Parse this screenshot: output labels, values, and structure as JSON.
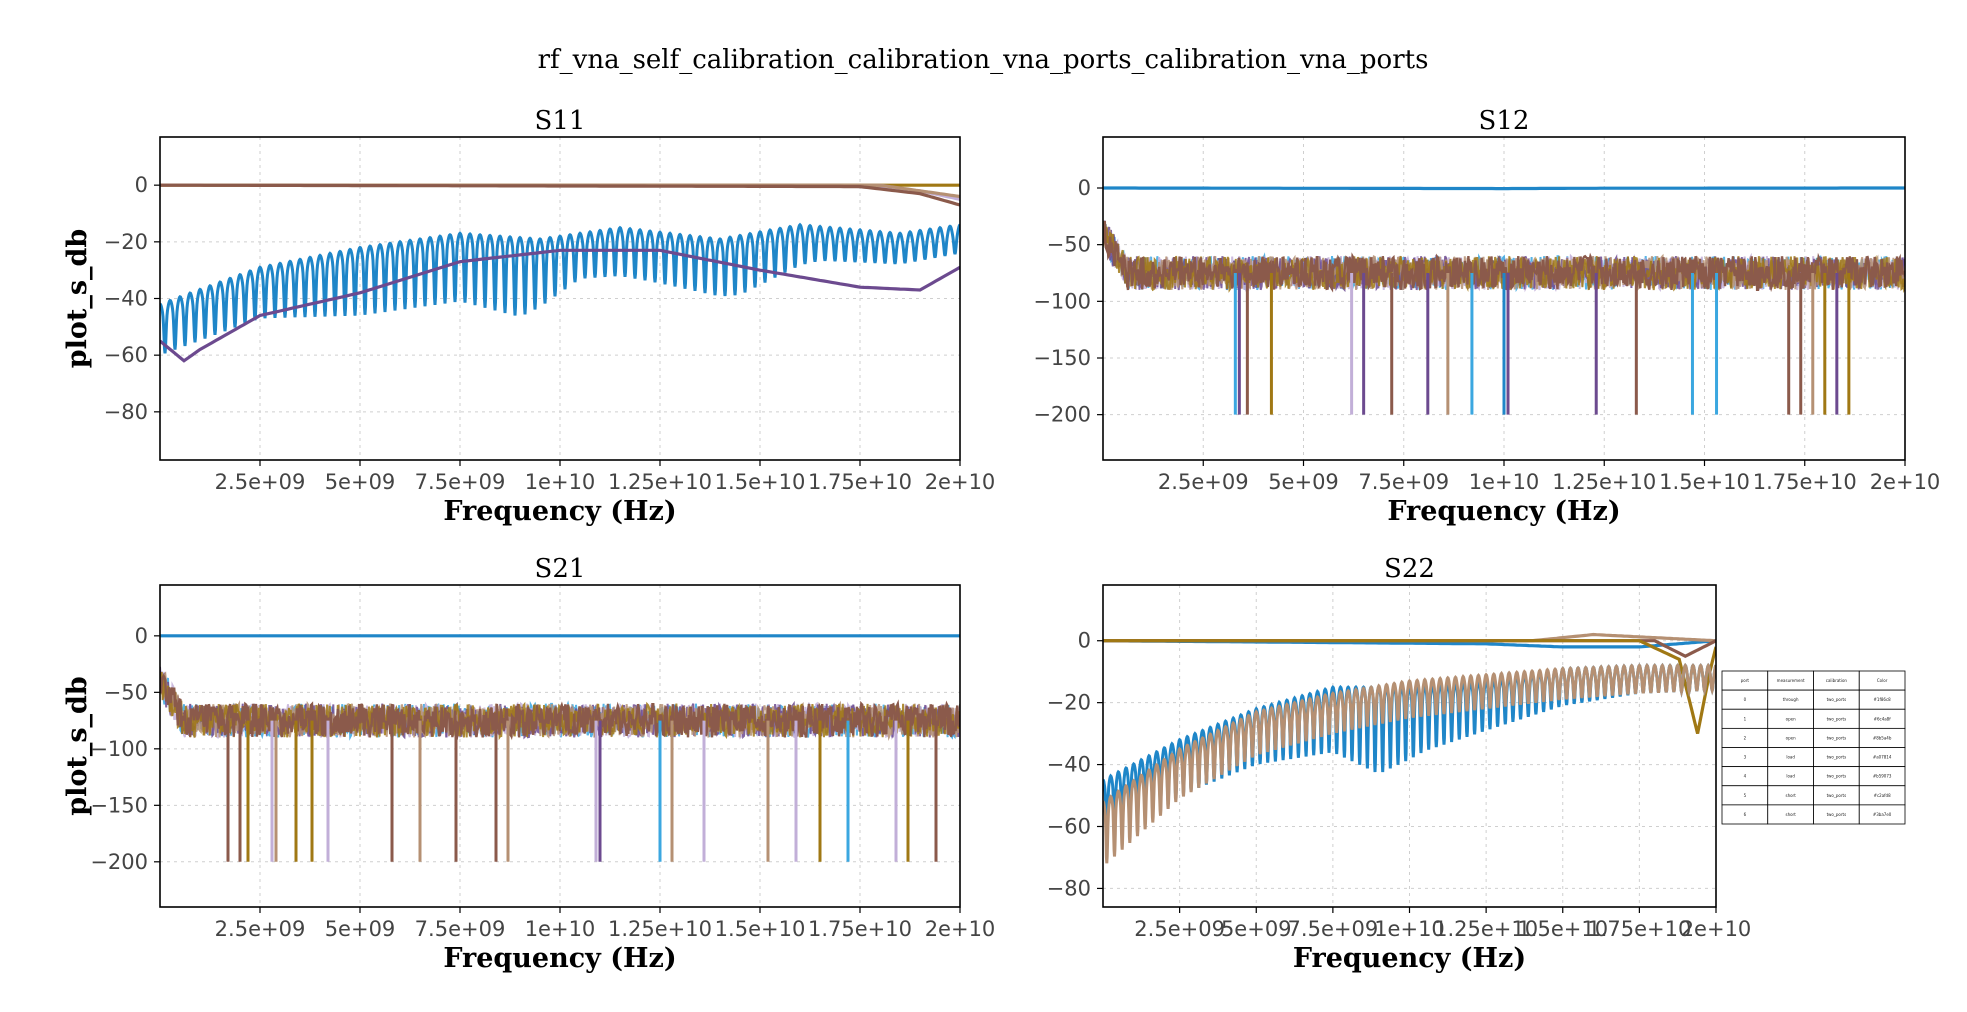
{
  "figure": {
    "suptitle": "rf_vna_self_calibration_calibration_vna_ports_calibration_vna_ports"
  },
  "palette": [
    "#1f86c8",
    "#6c4a8f",
    "#8b5a4b",
    "#a07814",
    "#b59073",
    "#c2afd8",
    "#3ba7e0"
  ],
  "chart_data": [
    {
      "type": "line",
      "title": "S11",
      "xlabel": "Frequency (Hz)",
      "ylabel": "plot_s_db",
      "xlim": [
        0,
        20000000000
      ],
      "ylim": [
        -97,
        17
      ],
      "x_ticks": [
        2500000000,
        5000000000,
        7500000000,
        10000000000,
        12500000000,
        15000000000,
        17500000000,
        20000000000
      ],
      "x_tick_labels": [
        "2.5e+09",
        "5e+09",
        "7.5e+09",
        "1e+10",
        "1.25e+10",
        "1.5e+10",
        "1.75e+10",
        "2e+10"
      ],
      "y_ticks": [
        0,
        -20,
        -40,
        -60,
        -80
      ],
      "y_tick_labels": [
        "0",
        "−20",
        "−40",
        "−60",
        "−80"
      ],
      "grid": true,
      "series": [
        {
          "color": "#c2afd8",
          "style": "flat",
          "points": [
            [
              0,
              0
            ],
            [
              17000000000,
              0
            ],
            [
              19000000000,
              -2
            ],
            [
              20000000000,
              -5
            ]
          ]
        },
        {
          "color": "#a07814",
          "style": "flat",
          "points": [
            [
              0,
              0
            ],
            [
              20000000000,
              0
            ]
          ]
        },
        {
          "color": "#b59073",
          "style": "flat",
          "points": [
            [
              0,
              0
            ],
            [
              18000000000,
              0
            ],
            [
              19500000000,
              -3
            ],
            [
              20000000000,
              -4
            ]
          ]
        },
        {
          "color": "#8b5a4b",
          "style": "flat",
          "points": [
            [
              0,
              0
            ],
            [
              17500000000,
              -0.5
            ],
            [
              19000000000,
              -3
            ],
            [
              20000000000,
              -7
            ]
          ]
        },
        {
          "color": "#1f86c8",
          "style": "ripple",
          "period": 250000000,
          "points": [
            [
              0,
              -45
            ],
            [
              2500000000,
              -32
            ],
            [
              5000000000,
              -25
            ],
            [
              7500000000,
              -20
            ],
            [
              9500000000,
              -22
            ],
            [
              11500000000,
              -18
            ],
            [
              14000000000,
              -22
            ],
            [
              16000000000,
              -17
            ],
            [
              18500000000,
              -20
            ],
            [
              20000000000,
              -17
            ]
          ],
          "depth": [
            [
              0,
              12
            ],
            [
              2500000000,
              12
            ],
            [
              5000000000,
              18
            ],
            [
              7500000000,
              18
            ],
            [
              9000000000,
              22
            ],
            [
              10500000000,
              10
            ],
            [
              12500000000,
              12
            ],
            [
              14500000000,
              15
            ],
            [
              16500000000,
              6
            ],
            [
              20000000000,
              4
            ]
          ]
        },
        {
          "color": "#6c4a8f",
          "style": "smooth",
          "points": [
            [
              0,
              -55
            ],
            [
              600000000,
              -62
            ],
            [
              1000000000,
              -58
            ],
            [
              2500000000,
              -46
            ],
            [
              5000000000,
              -38
            ],
            [
              7500000000,
              -27
            ],
            [
              10000000000,
              -23
            ],
            [
              12500000000,
              -23
            ],
            [
              15000000000,
              -30
            ],
            [
              17500000000,
              -36
            ],
            [
              19000000000,
              -37
            ],
            [
              20000000000,
              -29
            ]
          ]
        }
      ]
    },
    {
      "type": "line",
      "title": "S12",
      "xlabel": "Frequency (Hz)",
      "ylabel": "",
      "xlim": [
        0,
        20000000000
      ],
      "ylim": [
        -240,
        45
      ],
      "x_ticks": [
        2500000000,
        5000000000,
        7500000000,
        10000000000,
        12500000000,
        15000000000,
        17500000000,
        20000000000
      ],
      "x_tick_labels": [
        "2.5e+09",
        "5e+09",
        "7.5e+09",
        "1e+10",
        "1.25e+10",
        "1.5e+10",
        "1.75e+10",
        "2e+10"
      ],
      "y_ticks": [
        0,
        -50,
        -100,
        -150,
        -200
      ],
      "y_tick_labels": [
        "0",
        "−50",
        "−100",
        "−150",
        "−200"
      ],
      "grid": true,
      "noise_band": {
        "center": -75,
        "half_width": 15,
        "start": [
          0,
          -40
        ]
      },
      "spikes": [
        {
          "x": 3300000000,
          "color": "#3ba7e0"
        },
        {
          "x": 3400000000,
          "color": "#6c4a8f"
        },
        {
          "x": 3600000000,
          "color": "#8b5a4b"
        },
        {
          "x": 4200000000,
          "color": "#a07814"
        },
        {
          "x": 6200000000,
          "color": "#c2afd8"
        },
        {
          "x": 6500000000,
          "color": "#6c4a8f"
        },
        {
          "x": 7200000000,
          "color": "#8b5a4b"
        },
        {
          "x": 8100000000,
          "color": "#6c4a8f"
        },
        {
          "x": 8600000000,
          "color": "#b59073"
        },
        {
          "x": 9200000000,
          "color": "#3ba7e0"
        },
        {
          "x": 10000000000,
          "color": "#1f86c8"
        },
        {
          "x": 10100000000,
          "color": "#6c4a8f"
        },
        {
          "x": 12300000000,
          "color": "#6c4a8f"
        },
        {
          "x": 13300000000,
          "color": "#8b5a4b"
        },
        {
          "x": 14700000000,
          "color": "#3ba7e0"
        },
        {
          "x": 15300000000,
          "color": "#3ba7e0"
        },
        {
          "x": 17100000000,
          "color": "#8b5a4b"
        },
        {
          "x": 17400000000,
          "color": "#8b5a4b"
        },
        {
          "x": 17700000000,
          "color": "#b59073"
        },
        {
          "x": 18000000000,
          "color": "#a07814"
        },
        {
          "x": 18300000000,
          "color": "#6c4a8f"
        },
        {
          "x": 18600000000,
          "color": "#a07814"
        }
      ],
      "spike_bottom": -200,
      "series": [
        {
          "color": "#1f86c8",
          "style": "flat",
          "points": [
            [
              0,
              0
            ],
            [
              10000000000,
              -0.5
            ],
            [
              12500000000,
              -0.2
            ],
            [
              20000000000,
              0
            ]
          ]
        }
      ]
    },
    {
      "type": "line",
      "title": "S21",
      "xlabel": "Frequency (Hz)",
      "ylabel": "plot_s_db",
      "xlim": [
        0,
        20000000000
      ],
      "ylim": [
        -240,
        45
      ],
      "x_ticks": [
        2500000000,
        5000000000,
        7500000000,
        10000000000,
        12500000000,
        15000000000,
        17500000000,
        20000000000
      ],
      "x_tick_labels": [
        "2.5e+09",
        "5e+09",
        "7.5e+09",
        "1e+10",
        "1.25e+10",
        "1.5e+10",
        "1.75e+10",
        "2e+10"
      ],
      "y_ticks": [
        0,
        -50,
        -100,
        -150,
        -200
      ],
      "y_tick_labels": [
        "0",
        "−50",
        "−100",
        "−150",
        "−200"
      ],
      "grid": true,
      "noise_band": {
        "center": -75,
        "half_width": 15,
        "start": [
          0,
          -40
        ]
      },
      "spikes": [
        {
          "x": 1700000000,
          "color": "#8b5a4b"
        },
        {
          "x": 2000000000,
          "color": "#8b5a4b"
        },
        {
          "x": 2200000000,
          "color": "#a07814"
        },
        {
          "x": 2800000000,
          "color": "#c2afd8"
        },
        {
          "x": 2900000000,
          "color": "#b59073"
        },
        {
          "x": 3400000000,
          "color": "#a07814"
        },
        {
          "x": 3800000000,
          "color": "#a07814"
        },
        {
          "x": 4200000000,
          "color": "#c2afd8"
        },
        {
          "x": 5800000000,
          "color": "#8b5a4b"
        },
        {
          "x": 6500000000,
          "color": "#b59073"
        },
        {
          "x": 7400000000,
          "color": "#8b5a4b"
        },
        {
          "x": 8400000000,
          "color": "#8b5a4b"
        },
        {
          "x": 8700000000,
          "color": "#b59073"
        },
        {
          "x": 10900000000,
          "color": "#c2afd8"
        },
        {
          "x": 11000000000,
          "color": "#6c4a8f"
        },
        {
          "x": 12500000000,
          "color": "#3ba7e0"
        },
        {
          "x": 12800000000,
          "color": "#b59073"
        },
        {
          "x": 13600000000,
          "color": "#c2afd8"
        },
        {
          "x": 15200000000,
          "color": "#b59073"
        },
        {
          "x": 15900000000,
          "color": "#c2afd8"
        },
        {
          "x": 16500000000,
          "color": "#a07814"
        },
        {
          "x": 17200000000,
          "color": "#3ba7e0"
        },
        {
          "x": 18400000000,
          "color": "#c2afd8"
        },
        {
          "x": 18700000000,
          "color": "#a07814"
        },
        {
          "x": 19400000000,
          "color": "#8b5a4b"
        }
      ],
      "spike_bottom": -200,
      "series": [
        {
          "color": "#1f86c8",
          "style": "flat",
          "points": [
            [
              0,
              0
            ],
            [
              20000000000,
              0
            ]
          ]
        }
      ]
    },
    {
      "type": "line",
      "title": "S22",
      "xlabel": "Frequency (Hz)",
      "ylabel": "",
      "xlim": [
        0,
        20000000000
      ],
      "ylim": [
        -86,
        18
      ],
      "x_ticks": [
        2500000000,
        5000000000,
        7500000000,
        10000000000,
        12500000000,
        15000000000,
        17500000000,
        20000000000
      ],
      "x_tick_labels": [
        "2.5e+09",
        "5e+09",
        "7.5e+09",
        "1e+10",
        "1.25e+10",
        "1.5e+10",
        "1.75e+10",
        "2e+10"
      ],
      "y_ticks": [
        0,
        -20,
        -40,
        -60,
        -80
      ],
      "y_tick_labels": [
        "0",
        "−20",
        "−40",
        "−60",
        "−80"
      ],
      "grid": true,
      "series": [
        {
          "color": "#1f86c8",
          "style": "flat",
          "points": [
            [
              0,
              0
            ],
            [
              12500000000,
              -1
            ],
            [
              15000000000,
              -2
            ],
            [
              17500000000,
              -2
            ],
            [
              20000000000,
              0
            ]
          ]
        },
        {
          "color": "#b59073",
          "style": "flat",
          "points": [
            [
              0,
              0
            ],
            [
              14000000000,
              0
            ],
            [
              16000000000,
              2
            ],
            [
              18000000000,
              1
            ],
            [
              20000000000,
              0
            ]
          ]
        },
        {
          "color": "#8b5a4b",
          "style": "flat",
          "points": [
            [
              0,
              0
            ],
            [
              15000000000,
              0
            ],
            [
              18000000000,
              0
            ],
            [
              19000000000,
              -5
            ],
            [
              20000000000,
              0
            ]
          ]
        },
        {
          "color": "#a07814",
          "style": "flat",
          "points": [
            [
              0,
              0
            ],
            [
              17500000000,
              0
            ],
            [
              18800000000,
              -6
            ],
            [
              19400000000,
              -30
            ],
            [
              19800000000,
              -10
            ],
            [
              20000000000,
              -2
            ]
          ]
        },
        {
          "color": "#1f86c8",
          "style": "ripple",
          "period": 250000000,
          "points": [
            [
              0,
              -48
            ],
            [
              2500000000,
              -35
            ],
            [
              5000000000,
              -25
            ],
            [
              7500000000,
              -18
            ],
            [
              10000000000,
              -18
            ],
            [
              12500000000,
              -16
            ],
            [
              15000000000,
              -12
            ],
            [
              17500000000,
              -11
            ],
            [
              20000000000,
              -11
            ]
          ],
          "depth": [
            [
              0,
              15
            ],
            [
              2500000000,
              12
            ],
            [
              5000000000,
              12
            ],
            [
              7500000000,
              15
            ],
            [
              9000000000,
              22
            ],
            [
              10500000000,
              15
            ],
            [
              12500000000,
              10
            ],
            [
              15000000000,
              6
            ],
            [
              17500000000,
              3
            ],
            [
              20000000000,
              2
            ]
          ]
        },
        {
          "color": "#b59073",
          "style": "ripple",
          "period": 250000000,
          "points": [
            [
              0,
              -55
            ],
            [
              2500000000,
              -38
            ],
            [
              5000000000,
              -26
            ],
            [
              7500000000,
              -20
            ],
            [
              10000000000,
              -16
            ],
            [
              12500000000,
              -14
            ],
            [
              15000000000,
              -12
            ],
            [
              17500000000,
              -11
            ],
            [
              20000000000,
              -11
            ]
          ],
          "depth": [
            [
              0,
              15
            ],
            [
              2500000000,
              10
            ],
            [
              5000000000,
              8
            ],
            [
              7500000000,
              7
            ],
            [
              10000000000,
              6
            ],
            [
              12500000000,
              5
            ],
            [
              15000000000,
              4
            ],
            [
              17500000000,
              3
            ],
            [
              20000000000,
              2
            ]
          ]
        }
      ],
      "table": {
        "columns": [
          "port",
          "measurement",
          "calibration",
          "Color"
        ],
        "rows": [
          [
            "0",
            "through",
            "two_ports",
            "#1f86c8"
          ],
          [
            "1",
            "open",
            "two_ports",
            "#6c4a8f"
          ],
          [
            "2",
            "open",
            "two_ports",
            "#8b5a4b"
          ],
          [
            "3",
            "load",
            "two_ports",
            "#a07814"
          ],
          [
            "4",
            "load",
            "two_ports",
            "#b59073"
          ],
          [
            "5",
            "short",
            "two_ports",
            "#c2afd8"
          ],
          [
            "6",
            "short",
            "two_ports",
            "#3ba7e0"
          ]
        ]
      }
    }
  ]
}
